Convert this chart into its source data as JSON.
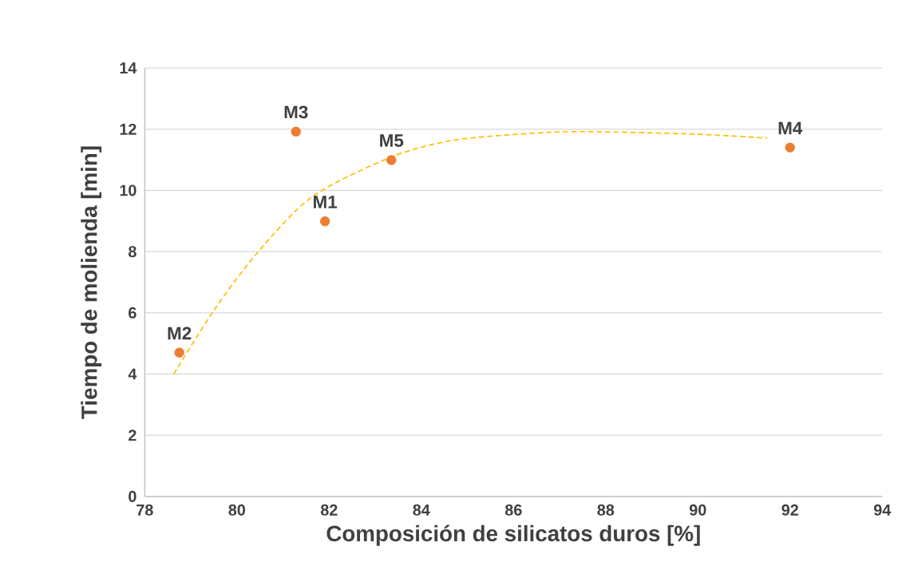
{
  "chart_data": {
    "type": "scatter",
    "xlabel": "Composición de silicatos duros [%]",
    "ylabel": "Tiempo de molienda [min]",
    "series": [
      {
        "color": "#ed7d31",
        "marker": "circle",
        "x": [
          81.91,
          78.75,
          81.28,
          92.0,
          83.35
        ],
        "values": [
          8.99,
          4.7,
          11.92,
          11.4,
          10.99
        ]
      },
      {
        "type": "line",
        "color": "#ffc000",
        "line_style": "dashed",
        "marker": "none",
        "x": [
          78.63,
          79.5,
          80.42,
          81.63,
          83.35,
          84.7,
          86.47,
          87.6,
          89.9,
          91.5
        ],
        "values": [
          4.0,
          6.08,
          7.92,
          9.79,
          11.09,
          11.64,
          11.87,
          11.92,
          11.84,
          11.71
        ]
      }
    ],
    "annotations": [
      {
        "text": "M1",
        "x": 81.91,
        "y": 8.99
      },
      {
        "text": "M2",
        "x": 78.75,
        "y": 4.7
      },
      {
        "text": "M3",
        "x": 81.28,
        "y": 11.92
      },
      {
        "text": "M4",
        "x": 92.0,
        "y": 11.4
      },
      {
        "text": "M5",
        "x": 83.35,
        "y": 10.99
      }
    ],
    "xlim": [
      78,
      94
    ],
    "xticks": [
      78,
      80,
      82,
      84,
      86,
      88,
      90,
      92,
      94
    ],
    "ylim": [
      0,
      14
    ],
    "yticks": [
      0,
      2,
      4,
      6,
      8,
      10,
      12,
      14
    ],
    "grid": "y"
  }
}
